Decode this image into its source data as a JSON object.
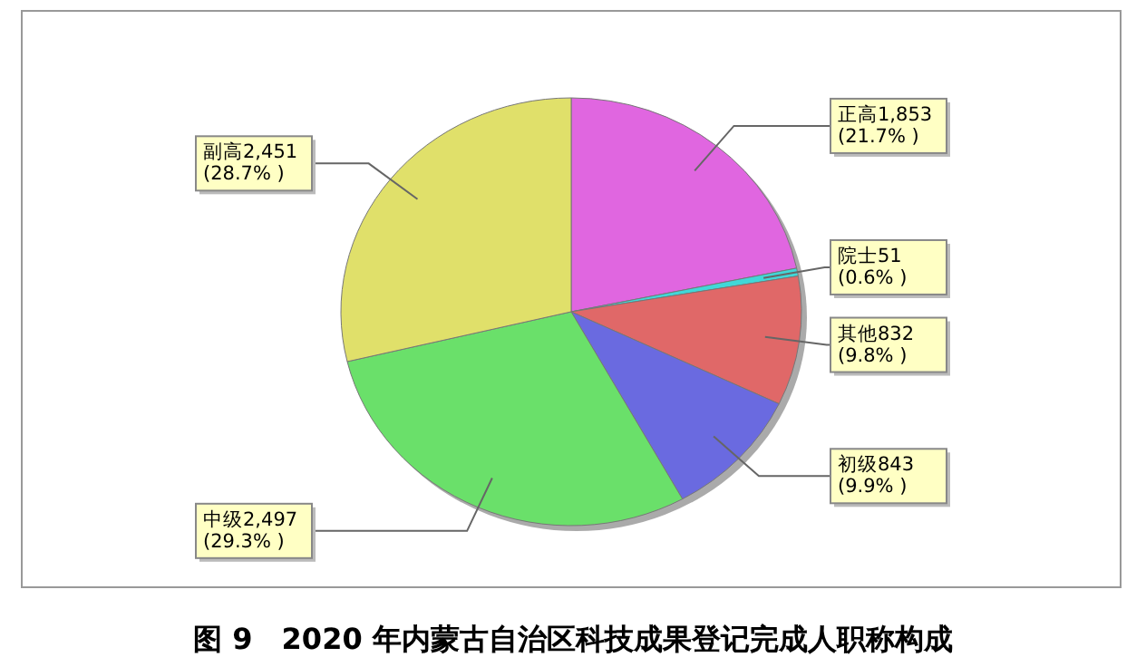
{
  "chart_data": {
    "type": "pie",
    "title": "图 9　2020 年内蒙古自治区科技成果登记完成人职称构成",
    "categories": [
      "正高",
      "院士",
      "其他",
      "初级",
      "中级",
      "副高"
    ],
    "values": [
      1853,
      51,
      832,
      843,
      2497,
      2451
    ],
    "value_labels": [
      "1,853 (21.7% )",
      "51 (0.6% )",
      "832 (9.8% )",
      "843 (9.9% )",
      "2,497 (29.3% )",
      "2,451 (28.7% )"
    ],
    "colors": [
      "#e066e0",
      "#40d8d8",
      "#e06868",
      "#6a6ae0",
      "#6ae06a",
      "#e0e06a"
    ]
  }
}
